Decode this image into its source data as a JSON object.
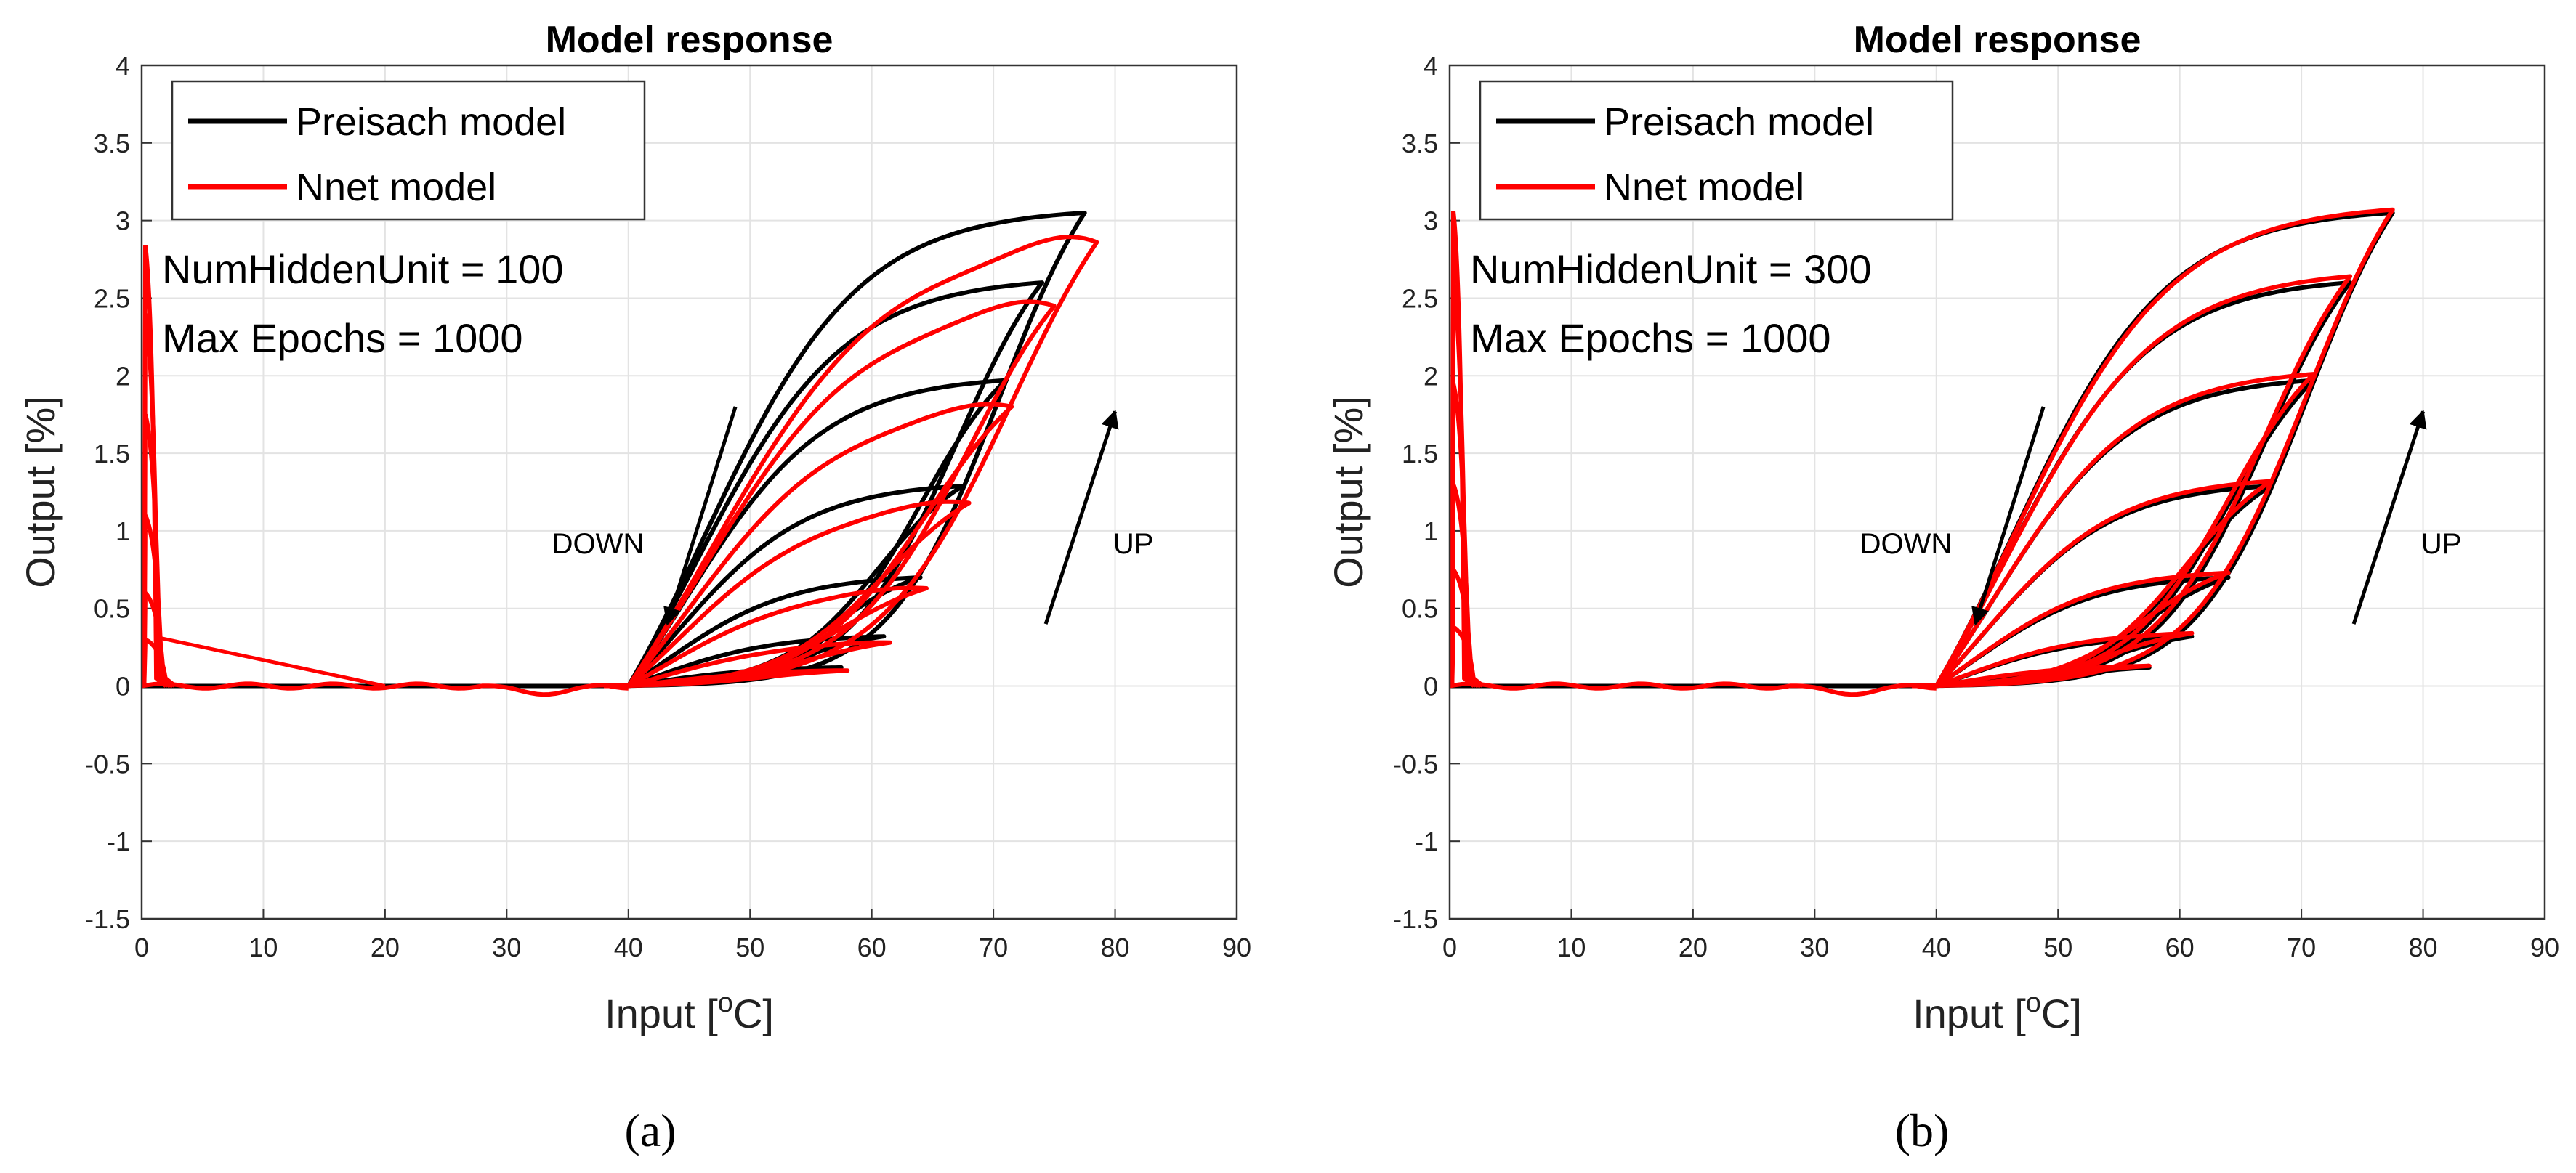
{
  "chart_data": [
    {
      "type": "line",
      "panel_label": "(a)",
      "title": "Model response",
      "xlabel": "Input [",
      "xlabel_sup": "o",
      "xlabel_unit": "C]",
      "ylabel": "Output [%]",
      "xlim": [
        0,
        90
      ],
      "ylim": [
        -1.5,
        4
      ],
      "xticks": [
        "0",
        "10",
        "20",
        "30",
        "40",
        "50",
        "60",
        "70",
        "80",
        "90"
      ],
      "yticks": [
        "-1.5",
        "-1",
        "-0.5",
        "0",
        "0.5",
        "1",
        "1.5",
        "2",
        "2.5",
        "3",
        "3.5",
        "4"
      ],
      "grid": true,
      "legend_position": "top-left",
      "legend": [
        {
          "label": "Preisach model",
          "color": "#000000"
        },
        {
          "label": "Nnet model",
          "color": "#ff0000"
        }
      ],
      "params": [
        "NumHiddenUnit = 100",
        "Max Epochs = 1000"
      ],
      "annotations": {
        "down": "DOWN",
        "up": "UP"
      },
      "series": [
        {
          "name": "Preisach model",
          "color": "#000000",
          "loops": [
            {
              "xmax": 77.5,
              "ymax": 3.05,
              "steep": 0.155
            },
            {
              "xmax": 74.0,
              "ymax": 2.6,
              "steep": 0.16
            },
            {
              "xmax": 71.0,
              "ymax": 1.97,
              "steep": 0.17
            },
            {
              "xmax": 67.5,
              "ymax": 1.29,
              "steep": 0.18
            },
            {
              "xmax": 64.0,
              "ymax": 0.7,
              "steep": 0.19
            },
            {
              "xmax": 61.0,
              "ymax": 0.32,
              "steep": 0.2
            },
            {
              "xmax": 57.5,
              "ymax": 0.12,
              "steep": 0.21
            }
          ]
        },
        {
          "name": "Nnet model",
          "color": "#ff0000",
          "loops": [
            {
              "xmax": 78.5,
              "ymax": 2.86,
              "steep": 0.13
            },
            {
              "xmax": 75.0,
              "ymax": 2.45,
              "steep": 0.14
            },
            {
              "xmax": 71.5,
              "ymax": 1.8,
              "steep": 0.15
            },
            {
              "xmax": 68.0,
              "ymax": 1.18,
              "steep": 0.16
            },
            {
              "xmax": 64.5,
              "ymax": 0.63,
              "steep": 0.17
            },
            {
              "xmax": 61.5,
              "ymax": 0.28,
              "steep": 0.18
            },
            {
              "xmax": 58.0,
              "ymax": 0.1,
              "steep": 0.19
            }
          ],
          "spikes": [
            2.84,
            2.4,
            1.75,
            1.1,
            0.6,
            0.3
          ],
          "tail": {
            "x0": 1.5,
            "y0": 0.31,
            "x1": 20,
            "y1": 0.0
          }
        }
      ]
    },
    {
      "type": "line",
      "panel_label": "(b)",
      "title": "Model response",
      "xlabel": "Input [",
      "xlabel_sup": "o",
      "xlabel_unit": "C]",
      "ylabel": "Output [%]",
      "xlim": [
        0,
        90
      ],
      "ylim": [
        -1.5,
        4
      ],
      "xticks": [
        "0",
        "10",
        "20",
        "30",
        "40",
        "50",
        "60",
        "70",
        "80",
        "90"
      ],
      "yticks": [
        "-1.5",
        "-1",
        "-0.5",
        "0",
        "0.5",
        "1",
        "1.5",
        "2",
        "2.5",
        "3",
        "3.5",
        "4"
      ],
      "grid": true,
      "legend_position": "top-left",
      "legend": [
        {
          "label": "Preisach model",
          "color": "#000000"
        },
        {
          "label": "Nnet model",
          "color": "#ff0000"
        }
      ],
      "params": [
        "NumHiddenUnit = 300",
        "Max Epochs = 1000"
      ],
      "annotations": {
        "down": "DOWN",
        "up": "UP"
      },
      "series": [
        {
          "name": "Preisach model",
          "color": "#000000",
          "loops": [
            {
              "xmax": 77.5,
              "ymax": 3.05,
              "steep": 0.155
            },
            {
              "xmax": 74.0,
              "ymax": 2.6,
              "steep": 0.16
            },
            {
              "xmax": 71.0,
              "ymax": 1.97,
              "steep": 0.17
            },
            {
              "xmax": 67.5,
              "ymax": 1.29,
              "steep": 0.18
            },
            {
              "xmax": 64.0,
              "ymax": 0.7,
              "steep": 0.19
            },
            {
              "xmax": 61.0,
              "ymax": 0.32,
              "steep": 0.2
            },
            {
              "xmax": 57.5,
              "ymax": 0.12,
              "steep": 0.21
            }
          ]
        },
        {
          "name": "Nnet model",
          "color": "#ff0000",
          "loops": [
            {
              "xmax": 77.5,
              "ymax": 3.07,
              "steep": 0.15
            },
            {
              "xmax": 74.0,
              "ymax": 2.64,
              "steep": 0.155
            },
            {
              "xmax": 71.0,
              "ymax": 2.01,
              "steep": 0.165
            },
            {
              "xmax": 67.5,
              "ymax": 1.32,
              "steep": 0.175
            },
            {
              "xmax": 64.0,
              "ymax": 0.73,
              "steep": 0.185
            },
            {
              "xmax": 61.0,
              "ymax": 0.34,
              "steep": 0.195
            },
            {
              "xmax": 57.5,
              "ymax": 0.13,
              "steep": 0.205
            }
          ],
          "spikes": [
            3.06,
            2.6,
            1.95,
            1.3,
            0.75,
            0.38
          ]
        }
      ]
    }
  ]
}
